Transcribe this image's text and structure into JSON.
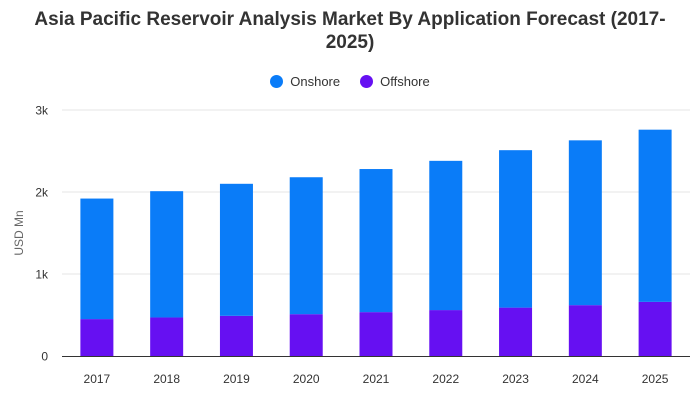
{
  "chart_data": {
    "type": "bar",
    "stacked": true,
    "title": "Asia Pacific Reservoir Analysis Market By Application Forecast (2017-2025)",
    "ylabel": "USD Mn",
    "xlabel": "",
    "categories": [
      "2017",
      "2018",
      "2019",
      "2020",
      "2021",
      "2022",
      "2023",
      "2024",
      "2025"
    ],
    "series": [
      {
        "name": "Offshore",
        "color": "#6610f2",
        "values": [
          450,
          470,
          490,
          510,
          535,
          560,
          590,
          620,
          660
        ]
      },
      {
        "name": "Onshore",
        "color": "#0a7cf8",
        "values": [
          1470,
          1540,
          1610,
          1670,
          1745,
          1820,
          1920,
          2010,
          2100
        ]
      }
    ],
    "ylim": [
      0,
      3000
    ],
    "yticks": [
      0,
      1000,
      2000,
      3000
    ],
    "ytick_labels": [
      "0",
      "1k",
      "2k",
      "3k"
    ],
    "grid": true,
    "legend_position": "top-center",
    "legend": [
      {
        "name": "Onshore",
        "color": "#0a7cf8"
      },
      {
        "name": "Offshore",
        "color": "#6610f2"
      }
    ]
  }
}
